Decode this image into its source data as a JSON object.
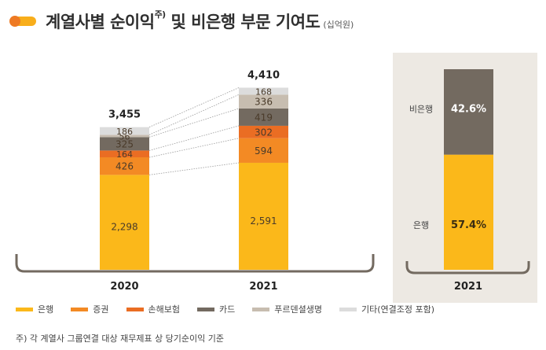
{
  "header": {
    "title": "계열사별 순이익",
    "title_sup": "주)",
    "title_rest": " 및 비은행 부문 기여도",
    "unit": "(십억원)",
    "icon": "pill-dot-icon"
  },
  "colors": {
    "bank": "#fbb81a",
    "securities": "#f38a24",
    "insurance": "#ea6d23",
    "card": "#736a60",
    "life": "#c7bdb0",
    "other": "#dcdcdc",
    "panel_bg": "#ede9e3",
    "bracket": "#736a60"
  },
  "chart_data": [
    {
      "type": "bar",
      "stacked": true,
      "title": "계열사별 순이익",
      "unit": "십억원",
      "categories": [
        "2020",
        "2021"
      ],
      "totals": [
        "3,455",
        "4,410"
      ],
      "series": [
        {
          "name": "은행",
          "key": "bank",
          "values": [
            2298,
            2591
          ],
          "labels": [
            "2,298",
            "2,591"
          ]
        },
        {
          "name": "증권",
          "key": "securities",
          "values": [
            426,
            594
          ],
          "labels": [
            "426",
            "594"
          ]
        },
        {
          "name": "손해보험",
          "key": "insurance",
          "values": [
            164,
            302
          ],
          "labels": [
            "164",
            "302"
          ]
        },
        {
          "name": "카드",
          "key": "card",
          "values": [
            325,
            419
          ],
          "labels": [
            "325",
            "419"
          ]
        },
        {
          "name": "푸르덴셜생명",
          "key": "life",
          "values": [
            56,
            336
          ],
          "labels": [
            "56",
            "336"
          ]
        },
        {
          "name": "기타(연결조정 포함)",
          "key": "other",
          "values": [
            186,
            168
          ],
          "labels": [
            "186",
            "168"
          ]
        }
      ],
      "legend": "bottom",
      "grid": false
    },
    {
      "type": "bar",
      "stacked": true,
      "title": "비은행 부문 기여도",
      "categories": [
        "2021"
      ],
      "series": [
        {
          "name": "은행",
          "key": "bank",
          "values": [
            57.4
          ],
          "labels": [
            "57.4%"
          ]
        },
        {
          "name": "비은행",
          "key": "card",
          "values": [
            42.6
          ],
          "labels": [
            "42.6%"
          ]
        }
      ],
      "ylim": [
        0,
        100
      ]
    }
  ],
  "legend": [
    {
      "label": "은행",
      "key": "bank"
    },
    {
      "label": "증권",
      "key": "securities"
    },
    {
      "label": "손해보험",
      "key": "insurance"
    },
    {
      "label": "카드",
      "key": "card"
    },
    {
      "label": "푸르덴셜생명",
      "key": "life"
    },
    {
      "label": "기타(연결조정 포함)",
      "key": "other"
    }
  ],
  "footnote": "주) 각 계열사 그룹연결 대상 재무제표 상 당기순이익 기준"
}
